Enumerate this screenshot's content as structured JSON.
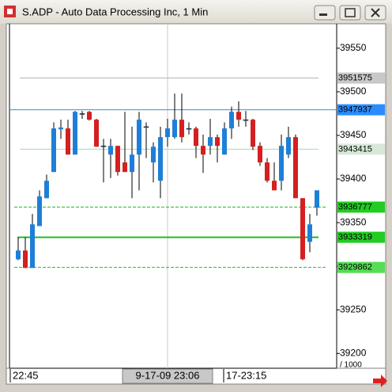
{
  "chart_data": {
    "type": "candlestick",
    "title": "S.ADP - Auto Data Processing Inc, 1 Min",
    "categories": [
      "22:45",
      null,
      null,
      null,
      null,
      null,
      null,
      null,
      null,
      null,
      null,
      null,
      null,
      null,
      null,
      null,
      null,
      null,
      null,
      null,
      null,
      "9-17-09 23:06",
      null,
      null,
      null,
      null,
      null,
      null,
      null,
      null,
      "17-23:15",
      null,
      null,
      null,
      null,
      null,
      null,
      null,
      null,
      null,
      null,
      null,
      null
    ],
    "open": [
      39308,
      39318,
      39298,
      39346,
      39378,
      39408,
      39457,
      39458,
      39428,
      39475,
      39477,
      39468,
      39438,
      39428,
      39438,
      39419,
      39408,
      39428,
      39460,
      39419,
      39398,
      39448,
      39448,
      39468,
      39458,
      39458,
      39438,
      39438,
      39448,
      39428,
      39458,
      39477,
      39468,
      39468,
      39438,
      39419,
      39398,
      39398,
      39428,
      39448,
      39378,
      39328,
      39367
    ],
    "high": [
      39333,
      39333,
      39360,
      39387,
      39405,
      39465,
      39468,
      39468,
      39478,
      39478,
      39478,
      39469,
      39446,
      39446,
      39438,
      39477,
      39460,
      39477,
      39465,
      39442,
      39460,
      39469,
      39498,
      39498,
      39465,
      39460,
      39451,
      39469,
      39451,
      39465,
      39483,
      39489,
      39478,
      39469,
      39442,
      39424,
      39419,
      39451,
      39460,
      39451,
      39378,
      39360,
      39387
    ],
    "low": [
      39307,
      39298,
      39298,
      39346,
      39378,
      39408,
      39446,
      39428,
      39428,
      39469,
      39467,
      39437,
      39396,
      39401,
      39404,
      39408,
      39378,
      39387,
      39424,
      39396,
      39378,
      39437,
      39446,
      39442,
      39451,
      39424,
      39407,
      39428,
      39419,
      39428,
      39446,
      39460,
      39460,
      39433,
      39415,
      39396,
      39387,
      39387,
      39424,
      39378,
      39307,
      39316,
      39358
    ],
    "close": [
      39318,
      39298,
      39348,
      39380,
      39398,
      39458,
      39459,
      39428,
      39477,
      39475,
      39468,
      39437,
      39438,
      39438,
      39408,
      39408,
      39428,
      39468,
      39460,
      39437,
      39448,
      39458,
      39468,
      39448,
      39458,
      39438,
      39428,
      39448,
      39438,
      39458,
      39477,
      39468,
      39468,
      39437,
      39419,
      39398,
      39387,
      39438,
      39448,
      39378,
      39308,
      39348,
      39387
    ],
    "up_color": "#1e7fd8",
    "down_color": "#d42020",
    "ylim": [
      39183,
      39578
    ],
    "yticks": [
      39200,
      39250,
      39300,
      39350,
      39400,
      39450,
      39500,
      39550
    ],
    "y_scale_note": "/ 1000",
    "crosshair_category": 21,
    "levels": [
      {
        "value": 39515.75,
        "label": "3951575",
        "color": "#b4b4b4",
        "tag_color": "#c8c8c8",
        "text_color": "#000000",
        "style": "solid"
      },
      {
        "value": 39479.37,
        "label": "3947937",
        "color": "#3a8fd0",
        "tag_color": "#2a8cff",
        "text_color": "#ffffff",
        "style": "solid"
      },
      {
        "value": 39434.15,
        "label": "3943415",
        "color": "#a8dca8",
        "tag_color": "#d8e8d8",
        "text_color": "#000000",
        "style": "solid"
      },
      {
        "value": 39367.77,
        "label": "3936777",
        "color": "#22bb22",
        "tag_color": "#22cc22",
        "text_color": "#000000",
        "style": "dashed"
      },
      {
        "value": 39333.19,
        "label": "3933319",
        "color": "#22bb22",
        "tag_color": "#22cc22",
        "text_color": "#000000",
        "style": "thick"
      },
      {
        "value": 39298.62,
        "label": "3929862",
        "color": "#22bb22",
        "tag_color": "#55dd55",
        "text_color": "#000000",
        "style": "dashed"
      }
    ]
  }
}
